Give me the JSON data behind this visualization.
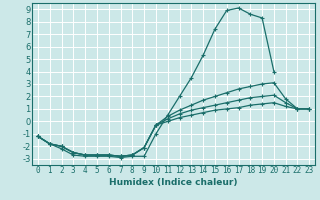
{
  "xlabel": "Humidex (Indice chaleur)",
  "background_color": "#cce8e8",
  "grid_color": "#ffffff",
  "line_color": "#1a6e6a",
  "xlim": [
    -0.5,
    23.5
  ],
  "ylim": [
    -3.5,
    9.5
  ],
  "xticks": [
    0,
    1,
    2,
    3,
    4,
    5,
    6,
    7,
    8,
    9,
    10,
    11,
    12,
    13,
    14,
    15,
    16,
    17,
    18,
    19,
    20,
    21,
    22,
    23
  ],
  "yticks": [
    -3,
    -2,
    -1,
    0,
    1,
    2,
    3,
    4,
    5,
    6,
    7,
    8,
    9
  ],
  "series": [
    {
      "x": [
        0,
        1,
        2,
        3,
        4,
        5,
        6,
        7,
        8,
        9,
        10,
        11,
        12,
        13,
        14,
        15,
        16,
        17,
        18,
        19,
        20
      ],
      "y": [
        -1.2,
        -1.8,
        -2.2,
        -2.7,
        -2.8,
        -2.8,
        -2.8,
        -2.9,
        -2.8,
        -2.8,
        -1.0,
        0.5,
        2.0,
        3.5,
        5.3,
        7.4,
        8.9,
        9.1,
        8.6,
        8.3,
        4.0
      ]
    },
    {
      "x": [
        0,
        1,
        2,
        3,
        4,
        5,
        6,
        7,
        8,
        9,
        10,
        11,
        12,
        13,
        14,
        15,
        16,
        17,
        18,
        19,
        20,
        21,
        22,
        23
      ],
      "y": [
        -1.2,
        -1.8,
        -2.0,
        -2.5,
        -2.7,
        -2.7,
        -2.7,
        -2.8,
        -2.7,
        -2.1,
        -0.3,
        0.4,
        0.9,
        1.3,
        1.7,
        2.0,
        2.3,
        2.6,
        2.8,
        3.0,
        3.1,
        1.8,
        1.0,
        1.0
      ]
    },
    {
      "x": [
        0,
        1,
        2,
        3,
        4,
        5,
        6,
        7,
        8,
        9,
        10,
        11,
        12,
        13,
        14,
        15,
        16,
        17,
        18,
        19,
        20,
        21,
        22,
        23
      ],
      "y": [
        -1.2,
        -1.8,
        -2.0,
        -2.5,
        -2.7,
        -2.7,
        -2.7,
        -2.8,
        -2.7,
        -2.1,
        -0.3,
        0.2,
        0.6,
        0.9,
        1.1,
        1.3,
        1.5,
        1.7,
        1.9,
        2.0,
        2.1,
        1.5,
        1.0,
        1.0
      ]
    },
    {
      "x": [
        0,
        1,
        2,
        3,
        4,
        5,
        6,
        7,
        8,
        9,
        10,
        11,
        12,
        13,
        14,
        15,
        16,
        17,
        18,
        19,
        20,
        21,
        22,
        23
      ],
      "y": [
        -1.2,
        -1.8,
        -2.0,
        -2.5,
        -2.7,
        -2.7,
        -2.7,
        -2.8,
        -2.7,
        -2.1,
        -0.3,
        0.0,
        0.3,
        0.5,
        0.7,
        0.9,
        1.0,
        1.1,
        1.3,
        1.4,
        1.5,
        1.2,
        1.0,
        1.0
      ]
    }
  ]
}
